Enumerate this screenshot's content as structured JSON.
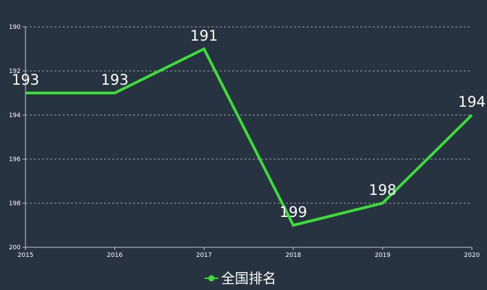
{
  "chart_data": {
    "type": "line",
    "x": [
      "2015",
      "2016",
      "2017",
      "2018",
      "2019",
      "2020"
    ],
    "series": [
      {
        "name": "全国排名",
        "values": [
          193,
          193,
          191,
          199,
          198,
          194
        ],
        "color": "#3ddc3a"
      }
    ],
    "y_ticks": [
      "190",
      "192",
      "194",
      "196",
      "198",
      "200"
    ],
    "ylim": [
      190,
      200
    ],
    "y_inverted": true,
    "grid": true,
    "legend": "bottom-center",
    "background": "#273340",
    "grid_color": "#9aa4ad",
    "axis_color": "#c8cdd2",
    "text_color": "#ffffff"
  }
}
